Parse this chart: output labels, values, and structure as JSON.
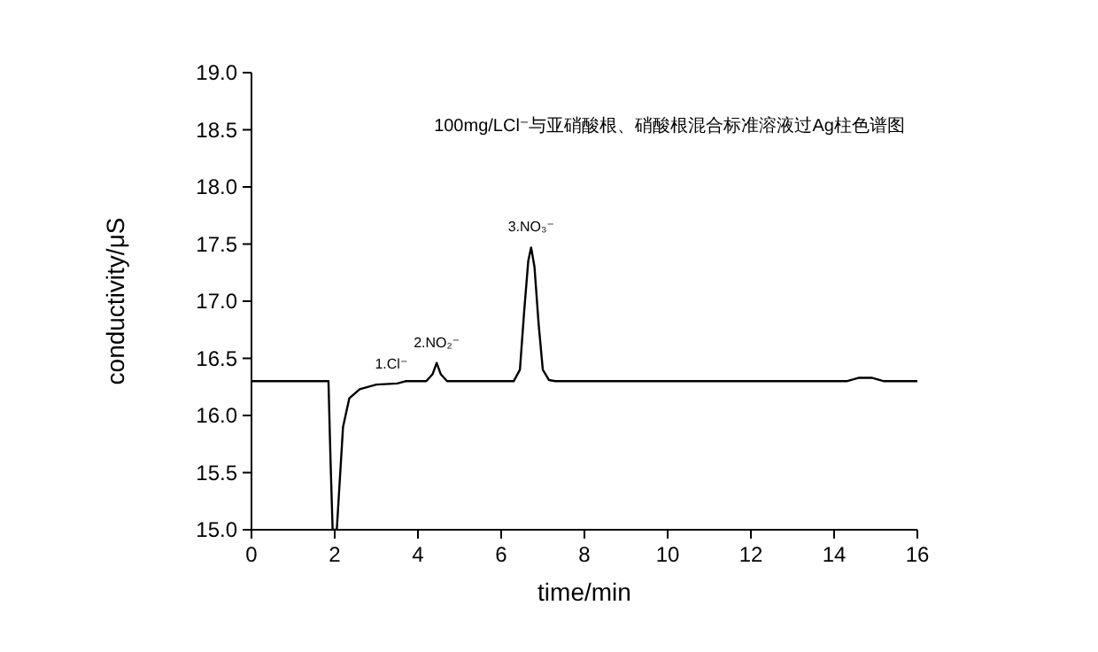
{
  "chart_data": {
    "type": "line",
    "title": "100mg/LCl⁻与亚硝酸根、硝酸根混合标准溶液过Ag柱色谱图",
    "xlabel": "time/min",
    "ylabel": "conductivity/μS",
    "xlim": [
      0,
      16
    ],
    "xticks": [
      0,
      2,
      4,
      6,
      8,
      10,
      12,
      14,
      16
    ],
    "ylim": [
      15,
      19
    ],
    "yticks": [
      {
        "value": 15,
        "label": "15.0"
      },
      {
        "value": 15.5,
        "label": "15.5"
      },
      {
        "value": 16,
        "label": "16.0"
      },
      {
        "value": 16.5,
        "label": "16.5"
      },
      {
        "value": 17,
        "label": "17.0"
      },
      {
        "value": 17.5,
        "label": "17.5"
      },
      {
        "value": 18,
        "label": "18.0"
      },
      {
        "value": 18.5,
        "label": "18.5"
      },
      {
        "value": 19,
        "label": "19.0"
      }
    ],
    "grid": false,
    "marker": "none",
    "line_style": "solid",
    "series": [
      {
        "color": "#000000",
        "x": [
          0,
          1.85,
          1.9,
          1.95,
          2.05,
          2.1,
          2.2,
          2.35,
          2.6,
          3.0,
          3.5,
          3.7,
          4.2,
          4.35,
          4.45,
          4.55,
          4.7,
          6.3,
          6.45,
          6.55,
          6.65,
          6.72,
          6.8,
          6.9,
          7.0,
          7.15,
          7.3,
          14.3,
          14.6,
          14.9,
          15.2,
          16
        ],
        "values": [
          16.3,
          16.3,
          15.6,
          15.0,
          15.0,
          15.3,
          15.9,
          16.15,
          16.23,
          16.27,
          16.28,
          16.3,
          16.3,
          16.36,
          16.46,
          16.36,
          16.3,
          16.3,
          16.4,
          16.9,
          17.35,
          17.47,
          17.3,
          16.8,
          16.4,
          16.31,
          16.3,
          16.3,
          16.33,
          16.33,
          16.3,
          16.3
        ]
      }
    ],
    "annotations": [
      {
        "text": "1.Cl⁻",
        "x": 3.7,
        "y": 16.3
      },
      {
        "text": "2.NO₂⁻",
        "x": 4.45,
        "y": 16.46
      },
      {
        "text": "3.NO₃⁻",
        "x": 6.72,
        "y": 17.47
      }
    ]
  }
}
